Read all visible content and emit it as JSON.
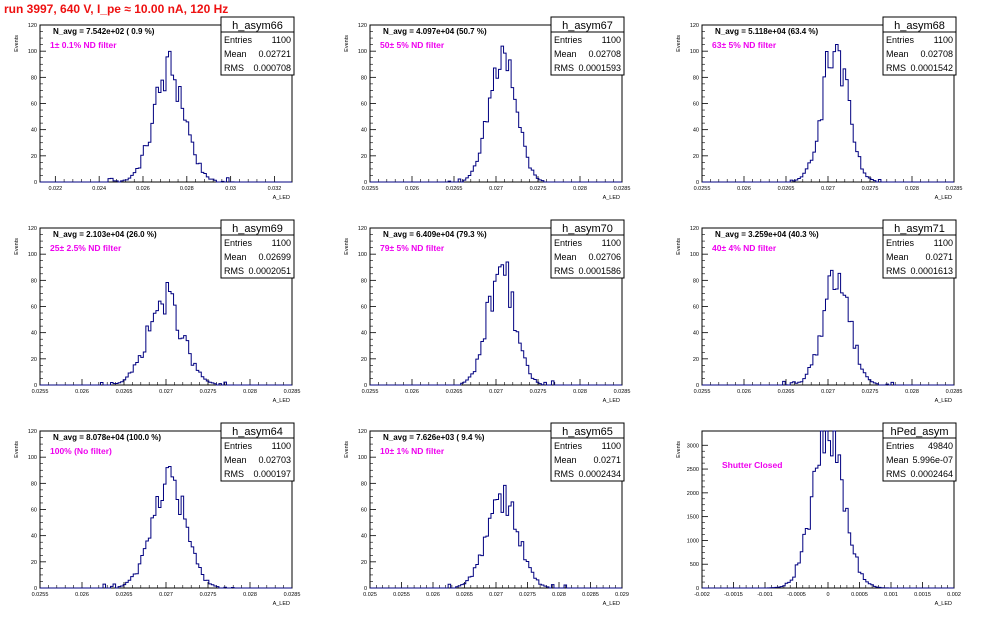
{
  "page": {
    "title": "run 3997,   640 V, I_pe ≈ 10.00 nA, 120 Hz"
  },
  "colors": {
    "histogram_line": "#000080",
    "annotation": "#ee00ee",
    "title": "#ee1111"
  },
  "chart_data": [
    {
      "type": "bar",
      "name": "h_asym66",
      "ylabel": "Events",
      "xlabel": "A_LED",
      "navg": "N_avg = 7.542e+02 ( 0.9 %)",
      "filter": "1± 0.1% ND filter",
      "stats": {
        "entries": "1100",
        "mean": "0.02721",
        "rms": "0.000708"
      },
      "xlim": [
        0.0213,
        0.0328
      ],
      "ylim": [
        0,
        120
      ],
      "xticks": [
        "0.022",
        "0.024",
        "0.026",
        "0.028",
        "0.03",
        "0.032"
      ],
      "yticks": [
        "0",
        "20",
        "40",
        "60",
        "80",
        "100",
        "120"
      ],
      "hist": {
        "center": 0.02721,
        "sigma": 0.000708,
        "peak": 85
      }
    },
    {
      "type": "bar",
      "name": "h_asym67",
      "ylabel": "Events",
      "xlabel": "A_LED",
      "navg": "N_avg = 4.097e+04 (50.7 %)",
      "filter": "50± 5% ND filter",
      "stats": {
        "entries": "1100",
        "mean": "0.02708",
        "rms": "0.0001593"
      },
      "xlim": [
        0.0255,
        0.0285
      ],
      "ylim": [
        0,
        120
      ],
      "xticks": [
        "0.0255",
        "0.026",
        "0.0265",
        "0.027",
        "0.0275",
        "0.028",
        "0.0285"
      ],
      "yticks": [
        "0",
        "20",
        "40",
        "60",
        "80",
        "100",
        "120"
      ],
      "hist": {
        "center": 0.02708,
        "sigma": 0.0001593,
        "peak": 96
      }
    },
    {
      "type": "bar",
      "name": "h_asym68",
      "ylabel": "Events",
      "xlabel": "A_LED",
      "navg": "N_avg = 5.118e+04 (63.4 %)",
      "filter": "63± 5% ND filter",
      "stats": {
        "entries": "1100",
        "mean": "0.02708",
        "rms": "0.0001542"
      },
      "xlim": [
        0.0255,
        0.0285
      ],
      "ylim": [
        0,
        120
      ],
      "xticks": [
        "0.0255",
        "0.026",
        "0.0265",
        "0.027",
        "0.0275",
        "0.028",
        "0.0285"
      ],
      "yticks": [
        "0",
        "20",
        "40",
        "60",
        "80",
        "100",
        "120"
      ],
      "hist": {
        "center": 0.02708,
        "sigma": 0.0001542,
        "peak": 100
      }
    },
    {
      "type": "bar",
      "name": "h_asym69",
      "ylabel": "Events",
      "xlabel": "A_LED",
      "navg": "N_avg = 2.103e+04 (26.0 %)",
      "filter": "25± 2.5% ND filter",
      "stats": {
        "entries": "1100",
        "mean": "0.02699",
        "rms": "0.0002051"
      },
      "xlim": [
        0.0255,
        0.0285
      ],
      "ylim": [
        0,
        120
      ],
      "xticks": [
        "0.0255",
        "0.026",
        "0.0265",
        "0.027",
        "0.0275",
        "0.028",
        "0.0285"
      ],
      "yticks": [
        "0",
        "20",
        "40",
        "60",
        "80",
        "100",
        "120"
      ],
      "hist": {
        "center": 0.02699,
        "sigma": 0.0002051,
        "peak": 65
      }
    },
    {
      "type": "bar",
      "name": "h_asym70",
      "ylabel": "Events",
      "xlabel": "A_LED",
      "navg": "N_avg = 6.409e+04 (79.3 %)",
      "filter": "79± 5% ND filter",
      "stats": {
        "entries": "1100",
        "mean": "0.02706",
        "rms": "0.0001586"
      },
      "xlim": [
        0.0255,
        0.0285
      ],
      "ylim": [
        0,
        120
      ],
      "xticks": [
        "0.0255",
        "0.026",
        "0.0265",
        "0.027",
        "0.0275",
        "0.028",
        "0.0285"
      ],
      "yticks": [
        "0",
        "20",
        "40",
        "60",
        "80",
        "100",
        "120"
      ],
      "hist": {
        "center": 0.02706,
        "sigma": 0.0001586,
        "peak": 90
      }
    },
    {
      "type": "bar",
      "name": "h_asym71",
      "ylabel": "Events",
      "xlabel": "A_LED",
      "navg": "N_avg = 3.259e+04 (40.3 %)",
      "filter": "40± 4% ND filter",
      "stats": {
        "entries": "1100",
        "mean": "0.0271",
        "rms": "0.0001613"
      },
      "xlim": [
        0.0255,
        0.0285
      ],
      "ylim": [
        0,
        120
      ],
      "xticks": [
        "0.0255",
        "0.026",
        "0.0265",
        "0.027",
        "0.0275",
        "0.028",
        "0.0285"
      ],
      "yticks": [
        "0",
        "20",
        "40",
        "60",
        "80",
        "100",
        "120"
      ],
      "hist": {
        "center": 0.0271,
        "sigma": 0.0001613,
        "peak": 84
      }
    },
    {
      "type": "bar",
      "name": "h_asym64",
      "ylabel": "Events",
      "xlabel": "A_LED",
      "navg": "N_avg = 8.078e+04 (100.0 %)",
      "filter": "100% (No filter)",
      "stats": {
        "entries": "1100",
        "mean": "0.02703",
        "rms": "0.000197"
      },
      "xlim": [
        0.0255,
        0.0285
      ],
      "ylim": [
        0,
        120
      ],
      "xticks": [
        "0.0255",
        "0.026",
        "0.0265",
        "0.027",
        "0.0275",
        "0.028",
        "0.0285"
      ],
      "yticks": [
        "0",
        "20",
        "40",
        "60",
        "80",
        "100",
        "120"
      ],
      "hist": {
        "center": 0.02703,
        "sigma": 0.000197,
        "peak": 84
      }
    },
    {
      "type": "bar",
      "name": "h_asym65",
      "ylabel": "Events",
      "xlabel": "A_LED",
      "navg": "N_avg = 7.626e+03 ( 9.4 %)",
      "filter": "10± 1% ND filter",
      "stats": {
        "entries": "1100",
        "mean": "0.0271",
        "rms": "0.0002434"
      },
      "xlim": [
        0.025,
        0.029
      ],
      "ylim": [
        0,
        120
      ],
      "xticks": [
        "0.025",
        "0.0255",
        "0.026",
        "0.0265",
        "0.027",
        "0.0275",
        "0.028",
        "0.0285",
        "0.029"
      ],
      "yticks": [
        "0",
        "20",
        "40",
        "60",
        "80",
        "100",
        "120"
      ],
      "hist": {
        "center": 0.0271,
        "sigma": 0.0002434,
        "peak": 73
      }
    },
    {
      "type": "bar",
      "name": "hPed_asym",
      "ylabel": "Events",
      "xlabel": "A_LED",
      "navg": "",
      "filter": "Shutter Closed",
      "stats": {
        "entries": "49840",
        "mean": "5.996e-07",
        "rms": "0.0002464"
      },
      "xlim": [
        -0.002,
        0.002
      ],
      "ylim": [
        0,
        3300
      ],
      "xticks": [
        "-0.002",
        "-0.0015",
        "-0.001",
        "-0.0005",
        "0",
        "0.0005",
        "0.001",
        "0.0015",
        "0.002"
      ],
      "yticks": [
        "0",
        "500",
        "1000",
        "1500",
        "2000",
        "2500",
        "3000"
      ],
      "hist": {
        "center": 6e-07,
        "sigma": 0.0002464,
        "peak": 3200
      }
    }
  ]
}
